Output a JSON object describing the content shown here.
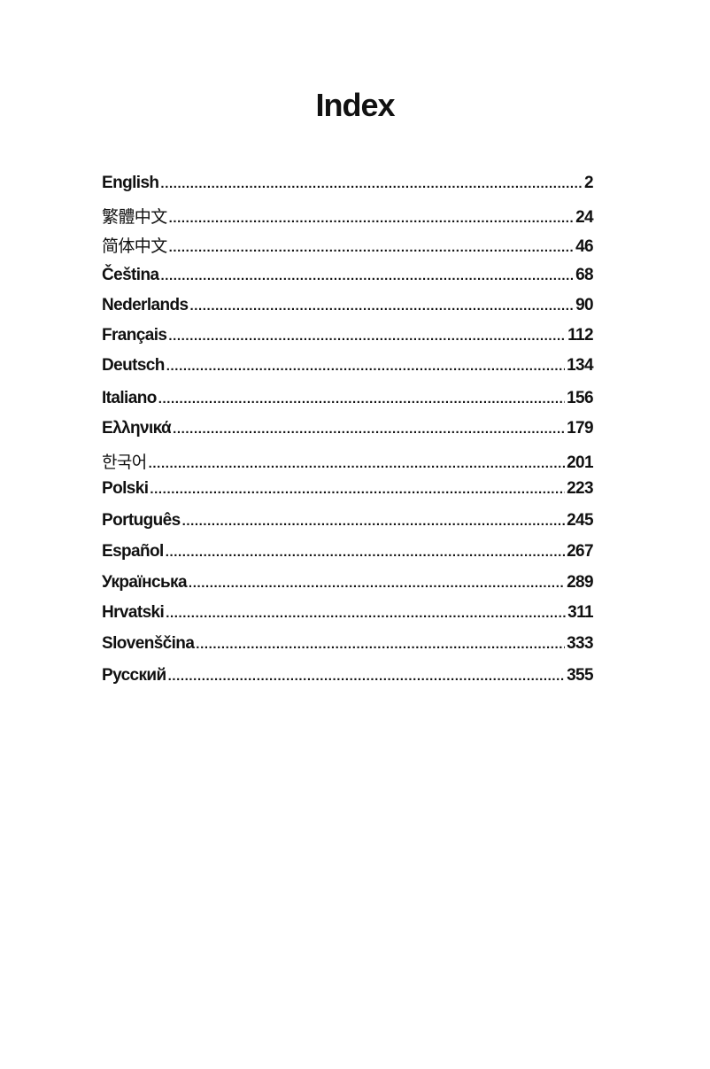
{
  "title": "Index",
  "entries": [
    {
      "name": "English",
      "page": "2"
    },
    {
      "name": "繁體中文",
      "page": "24"
    },
    {
      "name": "简体中文",
      "page": "46"
    },
    {
      "name": "Čeština",
      "page": "68"
    },
    {
      "name": "Nederlands",
      "page": "90"
    },
    {
      "name": "Français",
      "page": "112"
    },
    {
      "name": "Deutsch",
      "page": "134"
    },
    {
      "name": "Italiano",
      "page": "156"
    },
    {
      "name": "Ελληνικά",
      "page": "179"
    },
    {
      "name": "한국어",
      "page": "201"
    },
    {
      "name": "Polski",
      "page": "223"
    },
    {
      "name": "Português",
      "page": "245"
    },
    {
      "name": "Español",
      "page": "267"
    },
    {
      "name": "Українська",
      "page": "289"
    },
    {
      "name": "Hrvatski",
      "page": "311"
    },
    {
      "name": "Slovenščina",
      "page": "333"
    },
    {
      "name": "Русский",
      "page": "355"
    }
  ]
}
